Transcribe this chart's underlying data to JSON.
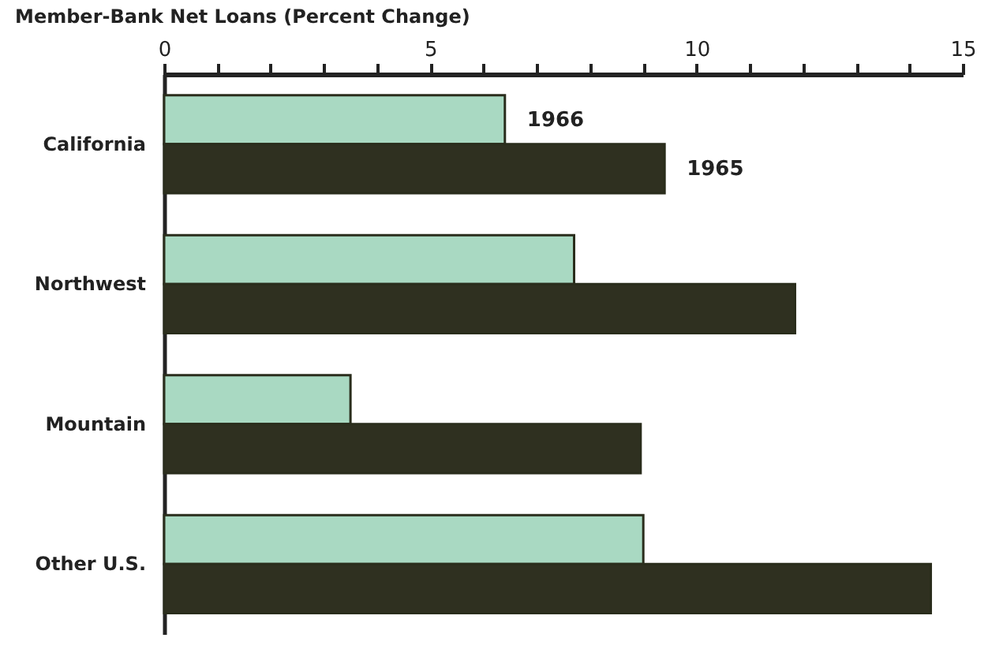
{
  "chart_data": {
    "type": "bar",
    "orientation": "horizontal",
    "xlabel": "Member-Bank Net Loans (Percent Change)",
    "categories": [
      "California",
      "Northwest",
      "Mountain",
      "Other U.S."
    ],
    "series": [
      {
        "name": "1966",
        "color": "#a9d9c2",
        "values": [
          6.4,
          7.7,
          3.5,
          9.0
        ]
      },
      {
        "name": "1965",
        "color": "#2f3020",
        "values": [
          9.4,
          11.85,
          8.95,
          14.4
        ]
      }
    ],
    "xlim": [
      0,
      15
    ],
    "xticks": [
      0,
      {
        "value": 1,
        "label": null
      },
      {
        "value": 2,
        "label": null
      },
      {
        "value": 3,
        "label": null
      },
      {
        "value": 4,
        "label": null
      },
      5,
      {
        "value": 6,
        "label": null
      },
      {
        "value": 7,
        "label": null
      },
      {
        "value": 8,
        "label": null
      },
      {
        "value": 9,
        "label": null
      },
      10,
      {
        "value": 11,
        "label": null
      },
      {
        "value": 12,
        "label": null
      },
      {
        "value": 13,
        "label": null
      },
      {
        "value": 14,
        "label": null
      },
      15
    ],
    "legend": false,
    "grid": false
  }
}
